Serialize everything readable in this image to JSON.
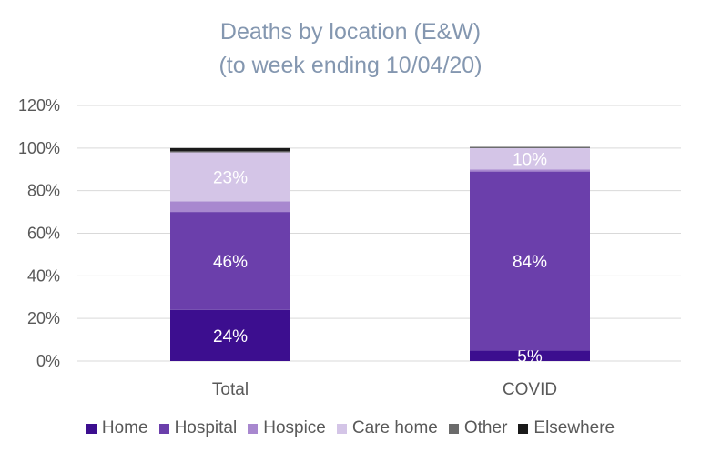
{
  "chart_data": {
    "type": "bar",
    "stacked": true,
    "title": "Deaths by location (E&W)",
    "subtitle": "(to week ending 10/04/20)",
    "categories": [
      "Total",
      "COVID"
    ],
    "ylim": [
      0,
      120
    ],
    "yticks": [
      "0%",
      "20%",
      "40%",
      "60%",
      "80%",
      "100%",
      "120%"
    ],
    "grid": true,
    "legend_position": "bottom",
    "series": [
      {
        "name": "Home",
        "color": "#3c0e8f",
        "values": [
          24,
          5
        ],
        "labels": [
          "24%",
          "5%"
        ]
      },
      {
        "name": "Hospital",
        "color": "#6b3fab",
        "values": [
          46,
          84
        ],
        "labels": [
          "46%",
          "84%"
        ]
      },
      {
        "name": "Hospice",
        "color": "#a888cf",
        "values": [
          5,
          1
        ],
        "labels": [
          "",
          ""
        ]
      },
      {
        "name": "Care home",
        "color": "#d4c5e7",
        "values": [
          23,
          10
        ],
        "labels": [
          "23%",
          "10%"
        ]
      },
      {
        "name": "Other",
        "color": "#6b6b6b",
        "values": [
          0.5,
          0.2
        ],
        "labels": [
          "",
          ""
        ]
      },
      {
        "name": "Elsewhere",
        "color": "#1a1a1a",
        "values": [
          1.5,
          0.3
        ],
        "labels": [
          "",
          ""
        ]
      }
    ]
  }
}
